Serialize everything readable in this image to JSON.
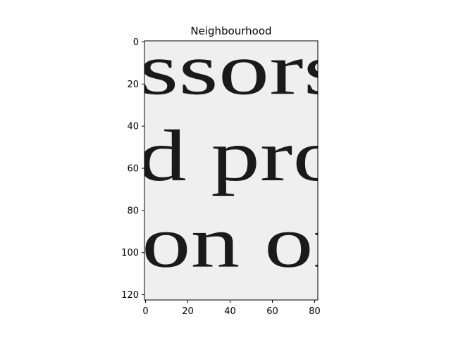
{
  "chart_data": {
    "type": "image",
    "title": "Neighbourhood",
    "xlabel": "",
    "ylabel": "",
    "xlim": [
      0,
      81
    ],
    "ylim": [
      122,
      0
    ],
    "x_ticks": [
      0,
      20,
      40,
      60,
      80
    ],
    "y_ticks": [
      0,
      20,
      40,
      60,
      80,
      100,
      120
    ],
    "grid": false,
    "colormap": "grayscale",
    "image_text_lines": [
      {
        "text": "ssors",
        "baseline_y": 23
      },
      {
        "text": "d  pro",
        "baseline_y": 64
      },
      {
        "text": "on  or",
        "baseline_y": 105
      }
    ]
  }
}
